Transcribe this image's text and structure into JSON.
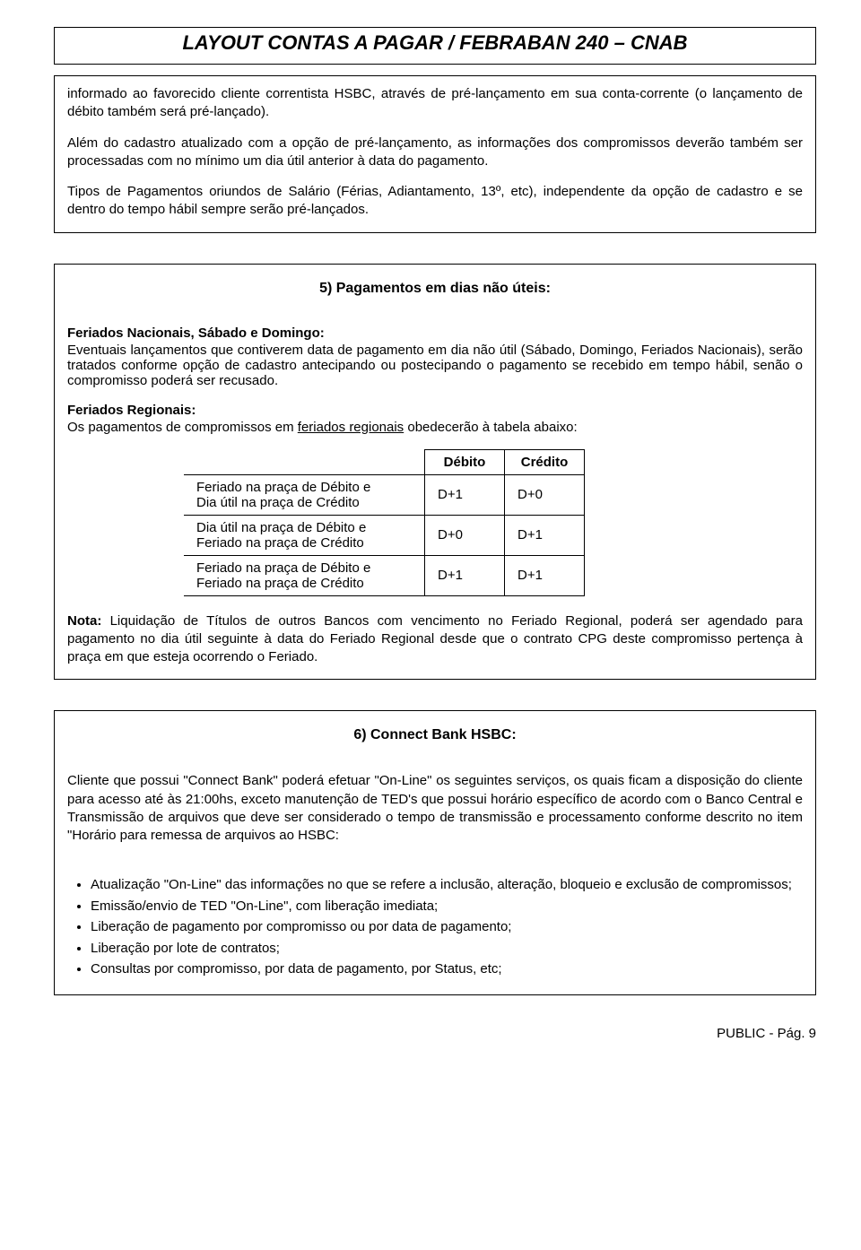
{
  "title": "LAYOUT CONTAS A PAGAR / FEBRABAN 240 – CNAB",
  "box1": {
    "p1": "informado ao favorecido cliente correntista HSBC, através de pré-lançamento em sua conta-corrente (o lançamento de débito também será pré-lançado).",
    "p2": "Além do cadastro atualizado com a opção de pré-lançamento, as informações dos compromissos deverão também ser processadas com no mínimo um dia útil anterior à data do pagamento.",
    "p3": "Tipos de Pagamentos oriundos de Salário (Férias, Adiantamento, 13º, etc), independente da opção de cadastro e se dentro do tempo hábil sempre serão pré-lançados."
  },
  "box2": {
    "heading": "5) Pagamentos em dias não úteis:",
    "sub1_title": "Feriados Nacionais, Sábado e Domingo:",
    "sub1_text": "Eventuais lançamentos que contiverem data de pagamento em  dia  não  útil (Sábado, Domingo, Feriados Nacionais), serão tratados conforme opção de cadastro antecipando ou postecipando o pagamento se recebido em tempo hábil, senão o compromisso poderá ser recusado.",
    "sub2_title": "Feriados Regionais:",
    "sub2_text_before": "Os pagamentos de compromissos em ",
    "sub2_text_underlined": "feriados regionais",
    "sub2_text_after": " obedecerão à tabela abaixo:",
    "table": {
      "h1": "Débito",
      "h2": "Crédito",
      "rows": [
        {
          "desc1": "Feriado na praça de Débito e",
          "desc2": "Dia útil na praça de Crédito",
          "d": "D+1",
          "c": "D+0"
        },
        {
          "desc1": "Dia útil na praça de Débito e",
          "desc2": "Feriado na praça de Crédito",
          "d": "D+0",
          "c": "D+1"
        },
        {
          "desc1": "Feriado na praça de Débito e",
          "desc2": "Feriado na praça de Crédito",
          "d": "D+1",
          "c": "D+1"
        }
      ]
    },
    "nota_label": "Nota:",
    "nota_text": " Liquidação de Títulos de outros Bancos com vencimento no Feriado Regional, poderá ser agendado para pagamento no dia útil seguinte à data do Feriado Regional desde que o contrato CPG deste compromisso pertença à praça em que esteja ocorrendo o Feriado."
  },
  "box3": {
    "heading": "6) Connect Bank HSBC:",
    "intro": "Cliente que possui \"Connect Bank\" poderá efetuar  \"On-Line\"  os  seguintes serviços, os quais ficam a disposição do cliente para acesso até às 21:00hs, exceto manutenção de TED's que possui horário específico de acordo com o Banco Central e Transmissão de arquivos que deve ser considerado o tempo de transmissão e processamento conforme descrito no item \"Horário para remessa de arquivos ao HSBC:",
    "items": [
      "Atualização \"On-Line\" das informações no que se refere a inclusão, alteração, bloqueio e exclusão de compromissos;",
      "Emissão/envio de TED \"On-Line\", com liberação imediata;",
      "Liberação de pagamento por compromisso ou por data de pagamento;",
      "Liberação por lote de contratos;",
      "Consultas por compromisso, por data de pagamento, por Status, etc;"
    ]
  },
  "footer": "PUBLIC - Pág. 9"
}
